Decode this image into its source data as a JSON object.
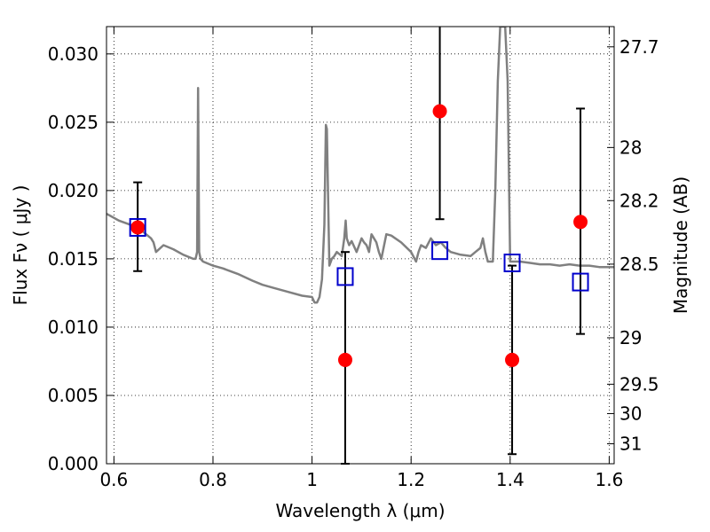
{
  "chart_data": {
    "type": "line",
    "xlabel": "Wavelength  λ (μm)",
    "ylabel": "Flux  Fν  ( μJy )",
    "ylabel_right": "Magnitude (AB)",
    "xlim": [
      0.585,
      1.61
    ],
    "ylim": [
      0.0,
      0.032
    ],
    "grid": true,
    "x_ticks": [
      0.6,
      0.8,
      1.0,
      1.2,
      1.4,
      1.6
    ],
    "x_tick_labels": [
      "0.6",
      "0.8",
      "1",
      "1.2",
      "1.4",
      "1.6"
    ],
    "y_ticks": [
      0.0,
      0.005,
      0.01,
      0.015,
      0.02,
      0.025,
      0.03
    ],
    "y_tick_labels": [
      "0.000",
      "0.005",
      "0.010",
      "0.015",
      "0.020",
      "0.025",
      "0.030"
    ],
    "right_ticks": [
      {
        "label": "27.7",
        "flux": 0.03052
      },
      {
        "label": "28",
        "flux": 0.02315
      },
      {
        "label": "28.2",
        "flux": 0.01926
      },
      {
        "label": "28.5",
        "flux": 0.01461
      },
      {
        "label": "29",
        "flux": 0.00922
      },
      {
        "label": "29.5",
        "flux": 0.00582
      },
      {
        "label": "30",
        "flux": 0.00367
      },
      {
        "label": "31",
        "flux": 0.00146
      }
    ],
    "colors": {
      "spectrum": "#808080",
      "observed": "#ff0000",
      "model": "#0000cc",
      "errorbar": "#000000",
      "grid": "#000000"
    },
    "series": [
      {
        "kind": "spectrum",
        "x": [
          0.585,
          0.595,
          0.61,
          0.625,
          0.64,
          0.655,
          0.665,
          0.675,
          0.68,
          0.685,
          0.7,
          0.72,
          0.74,
          0.76,
          0.765,
          0.768,
          0.77,
          0.772,
          0.775,
          0.78,
          0.8,
          0.82,
          0.85,
          0.88,
          0.9,
          0.92,
          0.95,
          0.98,
          1.0,
          1.005,
          1.01,
          1.015,
          1.02,
          1.025,
          1.028,
          1.03,
          1.035,
          1.038,
          1.04,
          1.045,
          1.05,
          1.06,
          1.065,
          1.068,
          1.07,
          1.075,
          1.08,
          1.09,
          1.1,
          1.105,
          1.11,
          1.115,
          1.12,
          1.13,
          1.135,
          1.14,
          1.15,
          1.16,
          1.18,
          1.2,
          1.21,
          1.215,
          1.22,
          1.23,
          1.24,
          1.25,
          1.26,
          1.27,
          1.28,
          1.3,
          1.32,
          1.33,
          1.34,
          1.345,
          1.35,
          1.355,
          1.36,
          1.365,
          1.37,
          1.375,
          1.38,
          1.385,
          1.39,
          1.395,
          1.4,
          1.42,
          1.44,
          1.46,
          1.48,
          1.5,
          1.52,
          1.54,
          1.56,
          1.58,
          1.6,
          1.61
        ],
        "y": [
          0.0183,
          0.0181,
          0.0178,
          0.0176,
          0.0174,
          0.0171,
          0.0168,
          0.0165,
          0.0162,
          0.0155,
          0.016,
          0.0157,
          0.0153,
          0.015,
          0.015,
          0.0155,
          0.0275,
          0.0155,
          0.015,
          0.0148,
          0.0145,
          0.0143,
          0.0139,
          0.0134,
          0.0131,
          0.0129,
          0.0126,
          0.0123,
          0.0122,
          0.0118,
          0.0118,
          0.0122,
          0.0135,
          0.0175,
          0.0248,
          0.0245,
          0.0145,
          0.0148,
          0.015,
          0.0152,
          0.0155,
          0.0152,
          0.0165,
          0.0178,
          0.0165,
          0.016,
          0.0163,
          0.0155,
          0.0165,
          0.0162,
          0.016,
          0.0155,
          0.0168,
          0.0162,
          0.0155,
          0.015,
          0.0168,
          0.0167,
          0.0162,
          0.0155,
          0.0148,
          0.0155,
          0.016,
          0.0158,
          0.0165,
          0.016,
          0.0162,
          0.0158,
          0.0155,
          0.0153,
          0.0152,
          0.0155,
          0.0158,
          0.0165,
          0.0155,
          0.0148,
          0.0148,
          0.0148,
          0.02,
          0.028,
          0.032,
          0.032,
          0.032,
          0.028,
          0.0148,
          0.0148,
          0.0147,
          0.0146,
          0.0146,
          0.0145,
          0.0146,
          0.0145,
          0.0145,
          0.0144,
          0.0144,
          0.0144
        ]
      },
      {
        "kind": "observed",
        "x": [
          0.648,
          1.067,
          1.258,
          1.404,
          1.542
        ],
        "y": [
          0.0173,
          0.0076,
          0.0258,
          0.0076,
          0.0177
        ],
        "err_low": [
          0.0141,
          0.0,
          0.0179,
          0.0007,
          0.0095
        ],
        "err_high": [
          0.0206,
          0.0155,
          0.032,
          0.0145,
          0.026
        ]
      },
      {
        "kind": "model",
        "x": [
          0.648,
          1.067,
          1.258,
          1.404,
          1.542
        ],
        "y": [
          0.0173,
          0.0137,
          0.0156,
          0.0147,
          0.0133
        ]
      }
    ]
  }
}
